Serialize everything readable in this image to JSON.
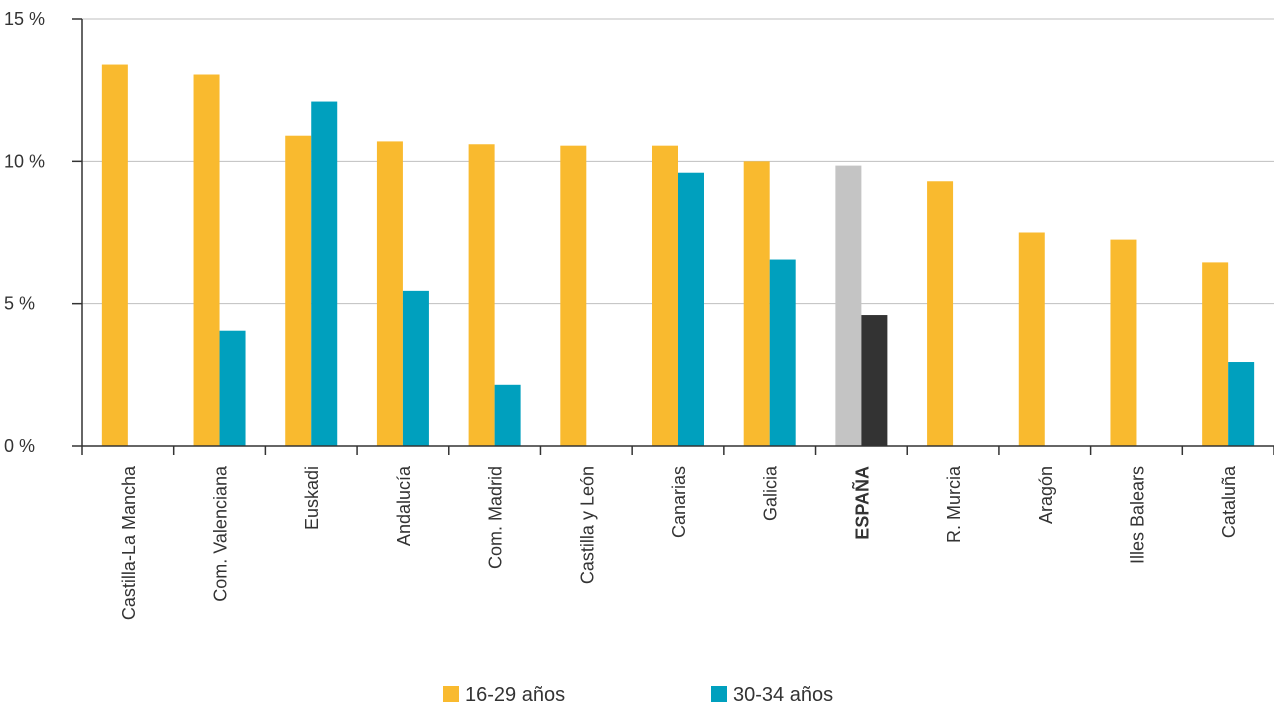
{
  "chart_data": {
    "type": "bar",
    "categories": [
      "Castilla-La Mancha",
      "Com. Valenciana",
      "Euskadi",
      "Andalucía",
      "Com. Madrid",
      "Castilla y León",
      "Canarias",
      "Galicia",
      "ESPAÑA",
      "R. Murcia",
      "Aragón",
      "Illes Balears",
      "Cataluña"
    ],
    "highlight_category": "ESPAÑA",
    "series": [
      {
        "name": "16-29 años",
        "color": "#F9BA2F",
        "highlight_color": "#C4C4C4",
        "values": [
          13.4,
          13.05,
          10.9,
          10.7,
          10.6,
          10.55,
          10.55,
          10.0,
          9.85,
          9.3,
          7.5,
          7.25,
          6.45
        ]
      },
      {
        "name": "30-34 años",
        "color": "#00A0BE",
        "highlight_color": "#333333",
        "values": [
          null,
          4.05,
          12.1,
          5.45,
          2.15,
          null,
          9.6,
          6.55,
          4.6,
          null,
          null,
          null,
          2.95
        ]
      }
    ],
    "y_ticks": [
      "0 %",
      "5 %",
      "10 %",
      "15 %"
    ],
    "y_tick_values": [
      0,
      5,
      10,
      15
    ],
    "ylim": [
      0,
      15
    ],
    "grid": true,
    "legend_position": "bottom-center"
  }
}
